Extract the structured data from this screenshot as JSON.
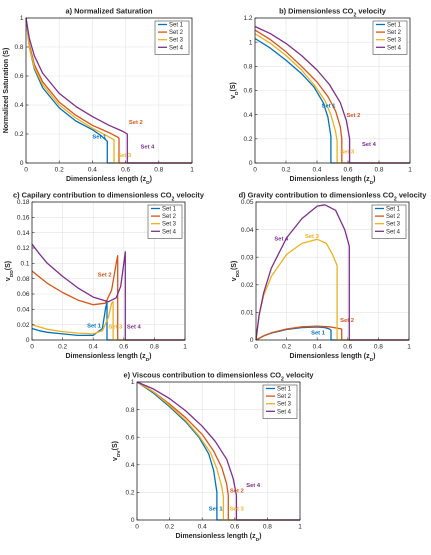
{
  "chart_data": [
    {
      "panel_id": "a",
      "type": "line",
      "title": "a) Normalized Saturation",
      "xlabel": "Dimensionless length (z_D)",
      "ylabel": "Normalized Saturation (S)",
      "xlim": [
        0,
        1
      ],
      "ylim": [
        0,
        1
      ],
      "xticks": [
        0,
        0.2,
        0.4,
        0.6,
        0.8,
        1
      ],
      "yticks": [
        0,
        0.2,
        0.4,
        0.6,
        0.8,
        1
      ],
      "grid": true,
      "legend_position": "top-right",
      "series": [
        {
          "name": "Set 1",
          "color": "#0072BD",
          "x": [
            0,
            0.02,
            0.05,
            0.1,
            0.2,
            0.3,
            0.4,
            0.45,
            0.48,
            0.49,
            0.49,
            1.0
          ],
          "y": [
            1,
            0.8,
            0.65,
            0.52,
            0.38,
            0.29,
            0.23,
            0.19,
            0.16,
            0.15,
            0,
            0
          ]
        },
        {
          "name": "Set 2",
          "color": "#D95319",
          "x": [
            0,
            0.02,
            0.05,
            0.1,
            0.2,
            0.3,
            0.4,
            0.5,
            0.55,
            0.56,
            0.56,
            1.0
          ],
          "y": [
            1,
            0.82,
            0.68,
            0.56,
            0.42,
            0.33,
            0.26,
            0.21,
            0.18,
            0.17,
            0,
            0
          ]
        },
        {
          "name": "Set 3",
          "color": "#EDB120",
          "x": [
            0,
            0.02,
            0.05,
            0.1,
            0.2,
            0.3,
            0.4,
            0.45,
            0.5,
            0.53,
            0.53,
            1.0
          ],
          "y": [
            1,
            0.8,
            0.66,
            0.54,
            0.4,
            0.31,
            0.24,
            0.21,
            0.18,
            0.16,
            0,
            0
          ]
        },
        {
          "name": "Set 4",
          "color": "#7E2F8E",
          "x": [
            0,
            0.02,
            0.05,
            0.1,
            0.2,
            0.3,
            0.4,
            0.5,
            0.58,
            0.61,
            0.61,
            1.0
          ],
          "y": [
            1,
            0.86,
            0.74,
            0.62,
            0.48,
            0.39,
            0.32,
            0.26,
            0.22,
            0.2,
            0,
            0
          ]
        }
      ],
      "annotations": [
        {
          "text": "Set 1",
          "color": "#0072BD",
          "x": 0.4,
          "y": 0.17
        },
        {
          "text": "Set 2",
          "color": "#D95319",
          "x": 0.62,
          "y": 0.27
        },
        {
          "text": "Set 3",
          "color": "#EDB120",
          "x": 0.55,
          "y": 0.04
        },
        {
          "text": "Set 4",
          "color": "#7E2F8E",
          "x": 0.69,
          "y": 0.1
        }
      ]
    },
    {
      "panel_id": "b",
      "type": "line",
      "title": "b) Dimensionless CO2 velocity",
      "xlabel": "Dimensionless length (z_D)",
      "ylabel": "v_D(S)",
      "xlim": [
        0,
        1
      ],
      "ylim": [
        0,
        1.2
      ],
      "xticks": [
        0,
        0.2,
        0.4,
        0.6,
        0.8,
        1
      ],
      "yticks": [
        0,
        0.2,
        0.4,
        0.6,
        0.8,
        1,
        1.2
      ],
      "grid": true,
      "legend_position": "top-right",
      "series": [
        {
          "name": "Set 1",
          "color": "#0072BD",
          "x": [
            0,
            0.1,
            0.2,
            0.3,
            0.38,
            0.44,
            0.47,
            0.49,
            0.49,
            1.0
          ],
          "y": [
            1.03,
            0.95,
            0.85,
            0.74,
            0.63,
            0.5,
            0.38,
            0.22,
            0,
            0
          ]
        },
        {
          "name": "Set 2",
          "color": "#D95319",
          "x": [
            0,
            0.1,
            0.2,
            0.3,
            0.4,
            0.47,
            0.52,
            0.55,
            0.56,
            0.56,
            1.0
          ],
          "y": [
            1.1,
            1.02,
            0.92,
            0.8,
            0.67,
            0.55,
            0.43,
            0.3,
            0.2,
            0,
            0
          ]
        },
        {
          "name": "Set 3",
          "color": "#EDB120",
          "x": [
            0,
            0.1,
            0.2,
            0.3,
            0.38,
            0.45,
            0.49,
            0.52,
            0.53,
            0.53,
            1.0
          ],
          "y": [
            1.07,
            0.99,
            0.89,
            0.77,
            0.65,
            0.52,
            0.4,
            0.26,
            0.18,
            0,
            0
          ]
        },
        {
          "name": "Set 4",
          "color": "#7E2F8E",
          "x": [
            0,
            0.1,
            0.2,
            0.3,
            0.4,
            0.48,
            0.55,
            0.59,
            0.61,
            0.61,
            1.0
          ],
          "y": [
            1.13,
            1.07,
            0.99,
            0.89,
            0.77,
            0.65,
            0.5,
            0.35,
            0.2,
            0,
            0
          ]
        }
      ],
      "annotations": [
        {
          "text": "Set 1",
          "color": "#0072BD",
          "x": 0.43,
          "y": 0.46
        },
        {
          "text": "Set 2",
          "color": "#D95319",
          "x": 0.59,
          "y": 0.38
        },
        {
          "text": "Set 3",
          "color": "#EDB120",
          "x": 0.55,
          "y": 0.08
        },
        {
          "text": "Set 4",
          "color": "#7E2F8E",
          "x": 0.69,
          "y": 0.14
        }
      ]
    },
    {
      "panel_id": "c",
      "type": "line",
      "title": "c) Capilary contribution to dimensionless CO2 velocity",
      "xlabel": "Dimensionless length (z_D)",
      "ylabel": "v_DD(S)",
      "xlim": [
        0,
        1
      ],
      "ylim": [
        0,
        0.18
      ],
      "xticks": [
        0,
        0.2,
        0.4,
        0.6,
        0.8,
        1
      ],
      "yticks": [
        0,
        0.02,
        0.04,
        0.06,
        0.08,
        0.1,
        0.12,
        0.14,
        0.16,
        0.18
      ],
      "grid": true,
      "legend_position": "top-right",
      "series": [
        {
          "name": "Set 1",
          "color": "#0072BD",
          "x": [
            0,
            0.05,
            0.1,
            0.2,
            0.3,
            0.4,
            0.46,
            0.48,
            0.49,
            0.49,
            1.0
          ],
          "y": [
            0.015,
            0.012,
            0.01,
            0.008,
            0.006,
            0.006,
            0.015,
            0.04,
            0.05,
            0,
            0
          ]
        },
        {
          "name": "Set 2",
          "color": "#D95319",
          "x": [
            0,
            0.05,
            0.1,
            0.2,
            0.3,
            0.4,
            0.48,
            0.52,
            0.55,
            0.56,
            0.56,
            1.0
          ],
          "y": [
            0.09,
            0.082,
            0.074,
            0.062,
            0.052,
            0.046,
            0.048,
            0.065,
            0.1,
            0.11,
            0,
            0
          ]
        },
        {
          "name": "Set 3",
          "color": "#EDB120",
          "x": [
            0,
            0.05,
            0.1,
            0.2,
            0.3,
            0.4,
            0.46,
            0.5,
            0.52,
            0.53,
            0.53,
            1.0
          ],
          "y": [
            0.02,
            0.017,
            0.014,
            0.011,
            0.009,
            0.008,
            0.012,
            0.03,
            0.048,
            0.05,
            0,
            0
          ]
        },
        {
          "name": "Set 4",
          "color": "#7E2F8E",
          "x": [
            0,
            0.05,
            0.1,
            0.2,
            0.3,
            0.4,
            0.5,
            0.55,
            0.58,
            0.6,
            0.61,
            0.61,
            1.0
          ],
          "y": [
            0.125,
            0.112,
            0.1,
            0.083,
            0.068,
            0.056,
            0.05,
            0.055,
            0.07,
            0.1,
            0.115,
            0,
            0
          ]
        }
      ],
      "annotations": [
        {
          "text": "Set 1",
          "color": "#0072BD",
          "x": 0.36,
          "y": 0.016
        },
        {
          "text": "Set 2",
          "color": "#D95319",
          "x": 0.43,
          "y": 0.083
        },
        {
          "text": "Set 3",
          "color": "#EDB120",
          "x": 0.5,
          "y": 0.015
        },
        {
          "text": "Set 4",
          "color": "#7E2F8E",
          "x": 0.62,
          "y": 0.015
        }
      ]
    },
    {
      "panel_id": "d",
      "type": "line",
      "title": "d) Gravity contribution to dimensionless CO2 velocity",
      "xlabel": "Dimensionless length (z_D)",
      "ylabel": "v_DG(S)",
      "xlim": [
        0,
        1
      ],
      "ylim": [
        0,
        0.05
      ],
      "xticks": [
        0,
        0.2,
        0.4,
        0.6,
        0.8,
        1
      ],
      "yticks": [
        0,
        0.01,
        0.02,
        0.03,
        0.04,
        0.05
      ],
      "grid": true,
      "legend_position": "top-right",
      "series": [
        {
          "name": "Set 1",
          "color": "#0072BD",
          "x": [
            0,
            0.05,
            0.1,
            0.2,
            0.3,
            0.4,
            0.45,
            0.48,
            0.49,
            0.49,
            1.0
          ],
          "y": [
            0,
            0.0015,
            0.0025,
            0.0038,
            0.0045,
            0.0047,
            0.0045,
            0.004,
            0.0035,
            0,
            0
          ]
        },
        {
          "name": "Set 2",
          "color": "#D95319",
          "x": [
            0,
            0.05,
            0.1,
            0.2,
            0.3,
            0.4,
            0.48,
            0.53,
            0.56,
            0.56,
            1.0
          ],
          "y": [
            0,
            0.0015,
            0.0026,
            0.004,
            0.0048,
            0.005,
            0.0048,
            0.0043,
            0.004,
            0,
            0
          ]
        },
        {
          "name": "Set 3",
          "color": "#EDB120",
          "x": [
            0,
            0.02,
            0.05,
            0.1,
            0.2,
            0.3,
            0.4,
            0.46,
            0.5,
            0.53,
            0.53,
            1.0
          ],
          "y": [
            0,
            0.009,
            0.016,
            0.023,
            0.031,
            0.035,
            0.0365,
            0.035,
            0.031,
            0.027,
            0,
            0
          ]
        },
        {
          "name": "Set 4",
          "color": "#7E2F8E",
          "x": [
            0,
            0.02,
            0.05,
            0.1,
            0.2,
            0.3,
            0.4,
            0.45,
            0.52,
            0.58,
            0.61,
            0.61,
            1.0
          ],
          "y": [
            0,
            0.009,
            0.017,
            0.026,
            0.037,
            0.044,
            0.0485,
            0.049,
            0.047,
            0.04,
            0.034,
            0,
            0
          ]
        }
      ],
      "annotations": [
        {
          "text": "Set 1",
          "color": "#0072BD",
          "x": 0.36,
          "y": 0.002
        },
        {
          "text": "Set 2",
          "color": "#D95319",
          "x": 0.55,
          "y": 0.0065
        },
        {
          "text": "Set 3",
          "color": "#EDB120",
          "x": 0.32,
          "y": 0.037
        },
        {
          "text": "Set 4",
          "color": "#7E2F8E",
          "x": 0.12,
          "y": 0.036
        }
      ]
    },
    {
      "panel_id": "e",
      "type": "line",
      "title": "e) Viscous contribution to dimensionless CO2 velocity",
      "xlabel": "Dimensionless length (z_D)",
      "ylabel": "v_DV(S)",
      "xlim": [
        0,
        1
      ],
      "ylim": [
        0,
        1
      ],
      "xticks": [
        0,
        0.2,
        0.4,
        0.6,
        0.8,
        1
      ],
      "yticks": [
        0,
        0.2,
        0.4,
        0.6,
        0.8,
        1
      ],
      "grid": true,
      "legend_position": "top-right",
      "series": [
        {
          "name": "Set 1",
          "color": "#0072BD",
          "x": [
            0,
            0.1,
            0.2,
            0.3,
            0.38,
            0.44,
            0.47,
            0.49,
            0.49,
            1.0
          ],
          "y": [
            1,
            0.92,
            0.82,
            0.71,
            0.6,
            0.48,
            0.36,
            0.2,
            0,
            0
          ]
        },
        {
          "name": "Set 2",
          "color": "#D95319",
          "x": [
            0,
            0.1,
            0.2,
            0.3,
            0.4,
            0.47,
            0.52,
            0.55,
            0.56,
            0.56,
            1.0
          ],
          "y": [
            1,
            0.93,
            0.84,
            0.74,
            0.62,
            0.5,
            0.38,
            0.26,
            0.18,
            0,
            0
          ]
        },
        {
          "name": "Set 3",
          "color": "#EDB120",
          "x": [
            0,
            0.1,
            0.2,
            0.3,
            0.38,
            0.45,
            0.49,
            0.52,
            0.53,
            0.53,
            1.0
          ],
          "y": [
            1,
            0.93,
            0.83,
            0.72,
            0.61,
            0.49,
            0.37,
            0.24,
            0.17,
            0,
            0
          ]
        },
        {
          "name": "Set 4",
          "color": "#7E2F8E",
          "x": [
            0,
            0.1,
            0.2,
            0.3,
            0.4,
            0.48,
            0.55,
            0.59,
            0.61,
            0.61,
            1.0
          ],
          "y": [
            1,
            0.95,
            0.88,
            0.79,
            0.68,
            0.57,
            0.44,
            0.3,
            0.18,
            0,
            0
          ]
        }
      ],
      "annotations": [
        {
          "text": "Set 1",
          "color": "#0072BD",
          "x": 0.44,
          "y": 0.07
        },
        {
          "text": "Set 2",
          "color": "#D95319",
          "x": 0.57,
          "y": 0.2
        },
        {
          "text": "Set 3",
          "color": "#EDB120",
          "x": 0.57,
          "y": 0.07
        },
        {
          "text": "Set 4",
          "color": "#7E2F8E",
          "x": 0.67,
          "y": 0.24
        }
      ]
    }
  ]
}
